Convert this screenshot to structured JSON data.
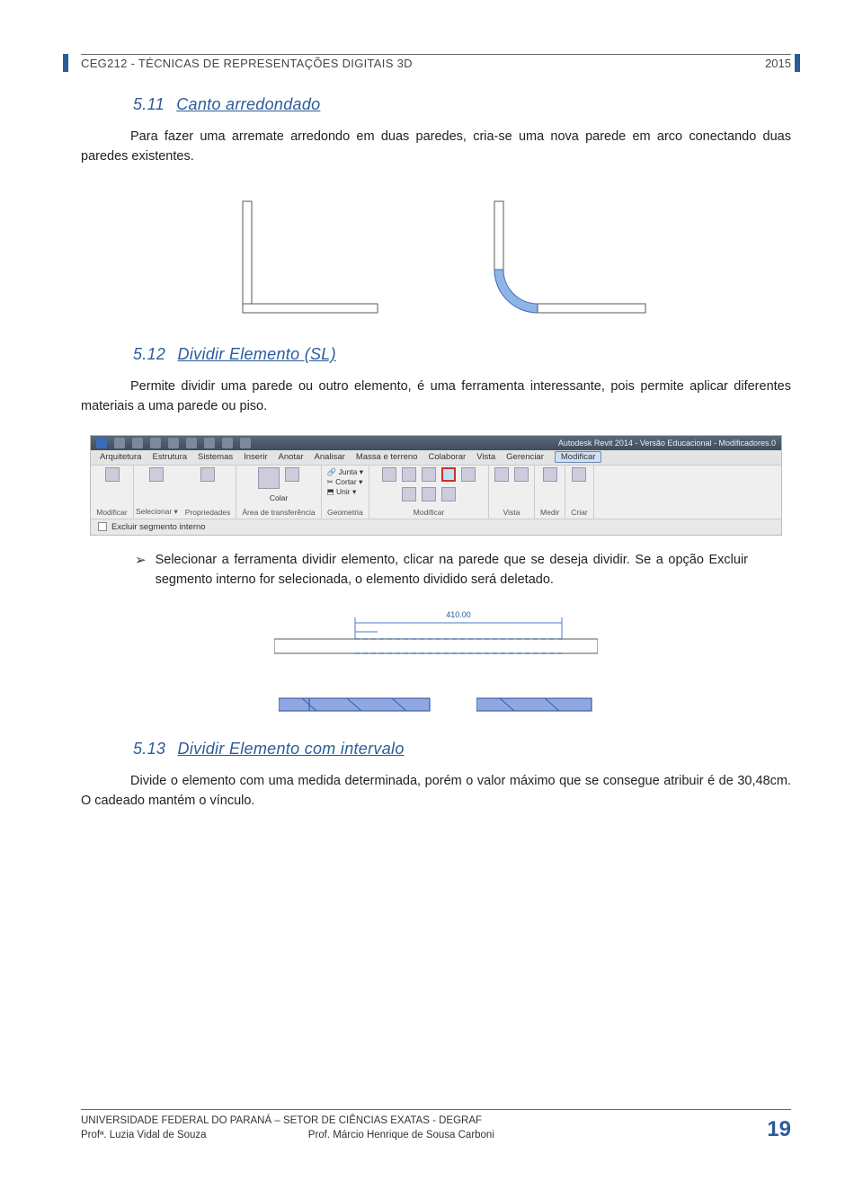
{
  "header": {
    "course": "CEG212 - TÉCNICAS DE REPRESENTAÇÕES DIGITAIS 3D",
    "year": "2015"
  },
  "s511": {
    "num": "5.11",
    "name": "Canto arredondado",
    "text": "Para fazer uma arremate arredondo em duas paredes, cria-se uma nova parede em arco conectando duas paredes existentes."
  },
  "corner_fig": {
    "stroke": "#5a5a5a",
    "fill_white": "#ffffff",
    "arc_fill": "#8fb4e6",
    "arc_stroke": "#3a6bb8"
  },
  "s512": {
    "num": "5.12",
    "name": "Dividir Elemento (SL)",
    "text": "Permite dividir uma parede ou outro elemento, é uma ferramenta interessante, pois permite aplicar diferentes materiais a uma parede ou piso."
  },
  "screenshot": {
    "title": "Autodesk Revit 2014 - Versão Educacional -   Modificadores.0",
    "menus": [
      "Arquitetura",
      "Estrutura",
      "Sistemas",
      "Inserir",
      "Anotar",
      "Analisar",
      "Massa e terreno",
      "Colaborar",
      "Vista",
      "Gerenciar",
      "Modificar"
    ],
    "active_tab": "Modificar",
    "panels": [
      {
        "name": "Modificar",
        "icons": 1,
        "label_top": ""
      },
      {
        "name": "Selecionar ▾",
        "icons": 0
      },
      {
        "name": "Propriedades",
        "icons": 1
      },
      {
        "name": "Área de transferência",
        "icons": 2,
        "label_top": "Colar"
      },
      {
        "name": "Geometria",
        "icons": 3,
        "rows": [
          {
            "icon": "🔗",
            "label": "Junta ▾"
          },
          {
            "icon": "✂",
            "label": "Cortar ▾"
          },
          {
            "icon": "⬒",
            "label": "Unir ▾"
          }
        ]
      },
      {
        "name": "Modificar",
        "icons": 8,
        "highlight": true
      },
      {
        "name": "Vista",
        "icons": 2
      },
      {
        "name": "Medir",
        "icons": 1
      },
      {
        "name": "Criar",
        "icons": 1
      }
    ],
    "checkbox": "Excluir segmento interno"
  },
  "bullet512": "Selecionar a ferramenta dividir elemento, clicar na parede que se deseja dividir. Se a opção Excluir segmento interno for selecionada, o elemento dividido será deletado.",
  "dim_fig": {
    "value": "410.00",
    "blue": "#4a78c8",
    "stroke": "#5a5a5a",
    "dash": "#4a78c8",
    "wall_fill": "#8fa8e0",
    "wall_stroke": "#3a5ba8"
  },
  "s513": {
    "num": "5.13",
    "name": "Dividir Elemento com intervalo",
    "text": "Divide o elemento com uma medida determinada, porém o valor máximo que se consegue atribuir é de 30,48cm. O cadeado mantém o vínculo."
  },
  "footer": {
    "line1": "UNIVERSIDADE FEDERAL DO PARANÁ – SETOR DE CIÊNCIAS EXATAS - DEGRAF",
    "prof1": "Profª. Luzia Vidal de Souza",
    "prof2": "Prof. Márcio Henrique de Sousa Carboni",
    "page": "19"
  }
}
